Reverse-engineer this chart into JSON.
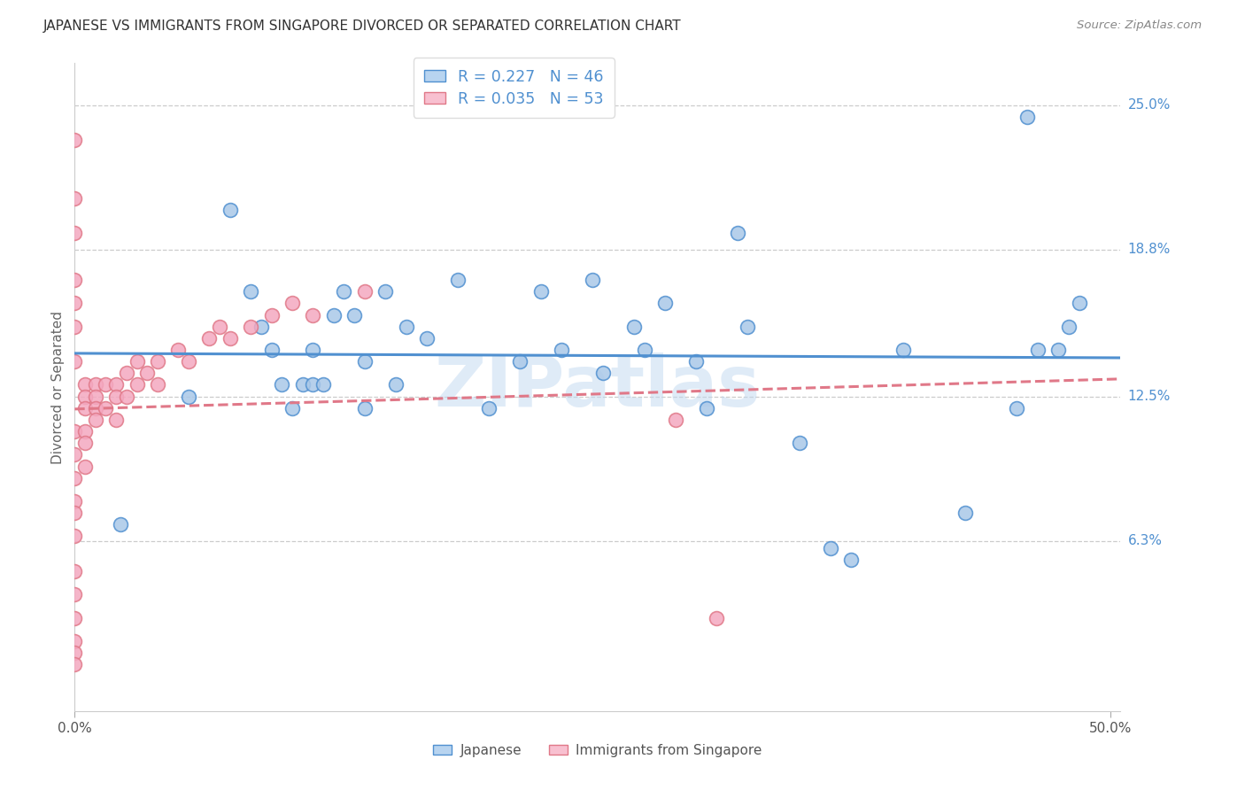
{
  "title": "JAPANESE VS IMMIGRANTS FROM SINGAPORE DIVORCED OR SEPARATED CORRELATION CHART",
  "source": "Source: ZipAtlas.com",
  "ylabel": "Divorced or Separated",
  "ytick_labels": [
    "6.3%",
    "12.5%",
    "18.8%",
    "25.0%"
  ],
  "ytick_values": [
    0.063,
    0.125,
    0.188,
    0.25
  ],
  "xtick_labels": [
    "0.0%",
    "50.0%"
  ],
  "xtick_values": [
    0.0,
    0.5
  ],
  "xmin": 0.0,
  "xmax": 0.505,
  "ymin": -0.01,
  "ymax": 0.268,
  "legend_entry1": "R = 0.227   N = 46",
  "legend_entry2": "R = 0.035   N = 53",
  "watermark": "ZIPatlas",
  "dot_color_blue": "#aac8e8",
  "dot_color_pink": "#f4a8c0",
  "line_color_blue": "#5090d0",
  "line_color_pink": "#e07888",
  "legend_color1": "#b8d4f0",
  "legend_color2": "#f8c0d0",
  "japanese_x": [
    0.022,
    0.055,
    0.075,
    0.085,
    0.09,
    0.095,
    0.1,
    0.105,
    0.11,
    0.115,
    0.115,
    0.12,
    0.125,
    0.13,
    0.135,
    0.14,
    0.14,
    0.15,
    0.155,
    0.16,
    0.17,
    0.185,
    0.2,
    0.215,
    0.225,
    0.235,
    0.25,
    0.255,
    0.27,
    0.275,
    0.285,
    0.3,
    0.305,
    0.32,
    0.325,
    0.35,
    0.365,
    0.375,
    0.4,
    0.43,
    0.455,
    0.46,
    0.465,
    0.475,
    0.48,
    0.485
  ],
  "japanese_y": [
    0.07,
    0.125,
    0.205,
    0.17,
    0.155,
    0.145,
    0.13,
    0.12,
    0.13,
    0.145,
    0.13,
    0.13,
    0.16,
    0.17,
    0.16,
    0.14,
    0.12,
    0.17,
    0.13,
    0.155,
    0.15,
    0.175,
    0.12,
    0.14,
    0.17,
    0.145,
    0.175,
    0.135,
    0.155,
    0.145,
    0.165,
    0.14,
    0.12,
    0.195,
    0.155,
    0.105,
    0.06,
    0.055,
    0.145,
    0.075,
    0.12,
    0.245,
    0.145,
    0.145,
    0.155,
    0.165
  ],
  "singapore_x": [
    0.0,
    0.0,
    0.0,
    0.0,
    0.0,
    0.0,
    0.0,
    0.0,
    0.0,
    0.0,
    0.0,
    0.0,
    0.0,
    0.0,
    0.0,
    0.0,
    0.0,
    0.0,
    0.0,
    0.005,
    0.005,
    0.005,
    0.005,
    0.005,
    0.005,
    0.01,
    0.01,
    0.01,
    0.01,
    0.015,
    0.015,
    0.02,
    0.02,
    0.02,
    0.025,
    0.025,
    0.03,
    0.03,
    0.035,
    0.04,
    0.04,
    0.05,
    0.055,
    0.065,
    0.07,
    0.075,
    0.085,
    0.095,
    0.105,
    0.115,
    0.14,
    0.29,
    0.31
  ],
  "singapore_y": [
    0.235,
    0.21,
    0.195,
    0.175,
    0.165,
    0.155,
    0.14,
    0.11,
    0.1,
    0.09,
    0.08,
    0.075,
    0.065,
    0.05,
    0.04,
    0.03,
    0.02,
    0.015,
    0.01,
    0.13,
    0.125,
    0.12,
    0.11,
    0.105,
    0.095,
    0.13,
    0.125,
    0.12,
    0.115,
    0.13,
    0.12,
    0.13,
    0.125,
    0.115,
    0.135,
    0.125,
    0.14,
    0.13,
    0.135,
    0.14,
    0.13,
    0.145,
    0.14,
    0.15,
    0.155,
    0.15,
    0.155,
    0.16,
    0.165,
    0.16,
    0.17,
    0.115,
    0.03
  ],
  "bottom_labels": [
    "Japanese",
    "Immigrants from Singapore"
  ]
}
